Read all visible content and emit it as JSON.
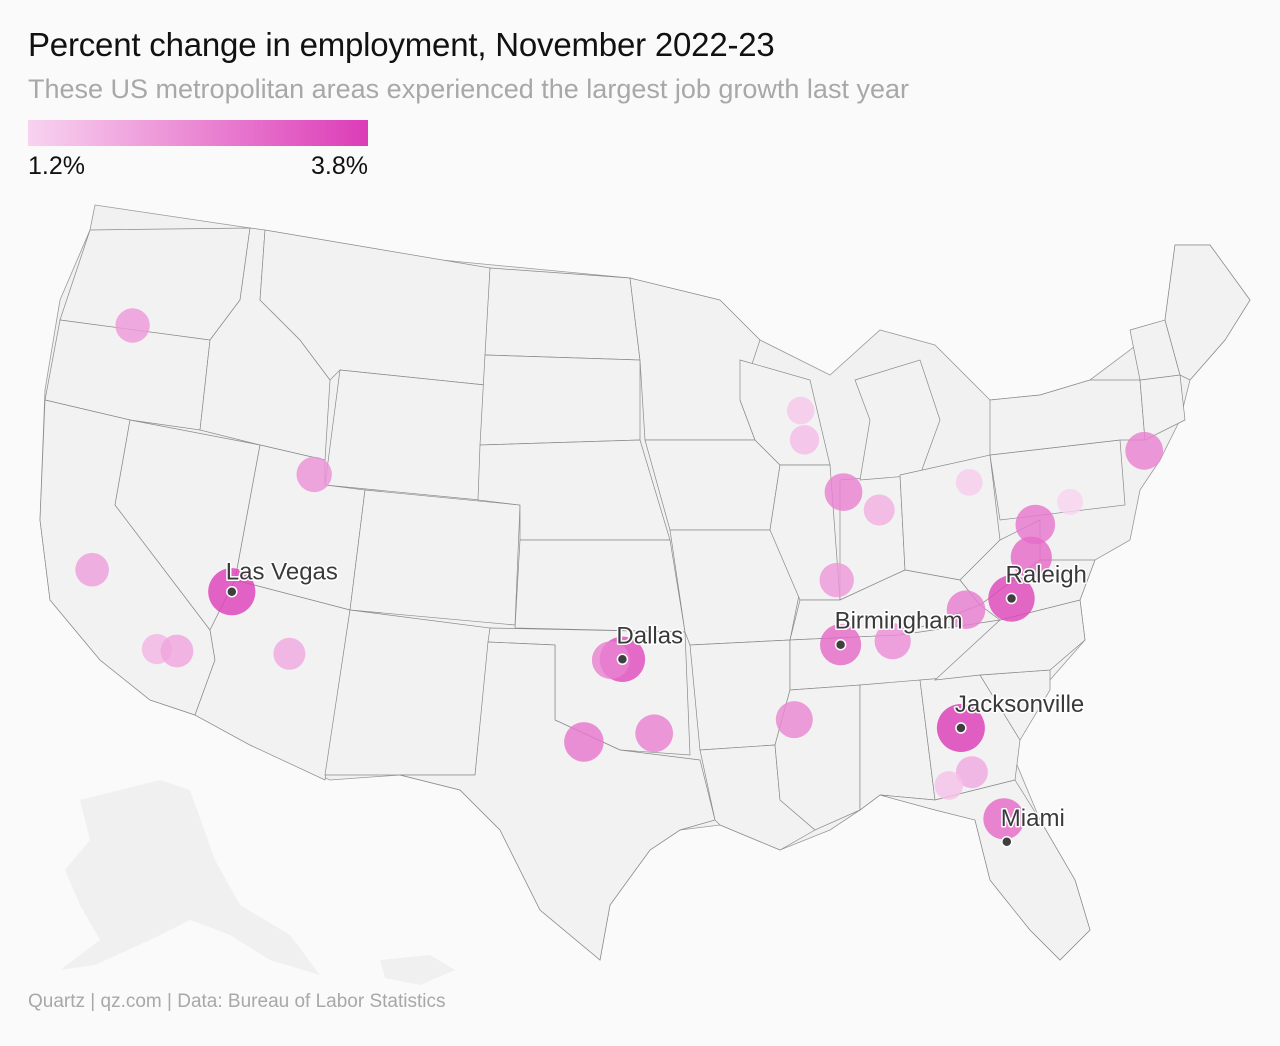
{
  "header": {
    "title": "Percent change in employment, November 2022-23",
    "subtitle": "These US metropolitan areas experienced the largest job growth last year"
  },
  "legend": {
    "min_label": "1.2%",
    "max_label": "3.8%",
    "min_value": 1.2,
    "max_value": 3.8,
    "color_low": "#f8d3ef",
    "color_high": "#dc3cb7"
  },
  "footer": {
    "source": "Quartz | qz.com | Data: Bureau of Labor Statistics"
  },
  "chart_data": {
    "type": "scatter",
    "encoding": "bubble map: color and size by percent change in employment",
    "points": [
      {
        "label": "Las Vegas",
        "lon": -115.14,
        "lat": 36.17,
        "value": 3.7
      },
      {
        "label": "Dallas",
        "lon": -96.8,
        "lat": 32.78,
        "value": 3.5
      },
      {
        "label": "",
        "lon": -97.33,
        "lat": 32.75,
        "value": 2.6
      },
      {
        "label": "Raleigh",
        "lon": -78.64,
        "lat": 35.78,
        "value": 3.6
      },
      {
        "label": "Birmingham",
        "lon": -86.8,
        "lat": 33.52,
        "value": 3.0
      },
      {
        "label": "Jacksonville",
        "lon": -81.66,
        "lat": 30.33,
        "value": 3.8
      },
      {
        "label": "Miami",
        "lon": -80.19,
        "lat": 25.76,
        "value": 0,
        "no_bubble": true
      },
      {
        "label": "",
        "lon": -80.2,
        "lat": 26.7,
        "value": 3.0
      },
      {
        "label": "",
        "lon": -122.33,
        "lat": 47.6,
        "value": 2.2
      },
      {
        "label": "",
        "lon": -111.89,
        "lat": 40.76,
        "value": 2.3
      },
      {
        "label": "",
        "lon": -122.0,
        "lat": 37.6,
        "value": 2.1
      },
      {
        "label": "",
        "lon": -118.25,
        "lat": 34.05,
        "value": 1.7
      },
      {
        "label": "",
        "lon": -117.3,
        "lat": 33.9,
        "value": 2.0
      },
      {
        "label": "",
        "lon": -112.07,
        "lat": 33.45,
        "value": 1.9
      },
      {
        "label": "",
        "lon": -98.49,
        "lat": 29.42,
        "value": 2.8
      },
      {
        "label": "",
        "lon": -95.37,
        "lat": 29.76,
        "value": 2.6
      },
      {
        "label": "",
        "lon": -89.1,
        "lat": 30.4,
        "value": 2.5
      },
      {
        "label": "",
        "lon": -88.0,
        "lat": 43.04,
        "value": 1.4
      },
      {
        "label": "",
        "lon": -87.9,
        "lat": 41.85,
        "value": 1.6
      },
      {
        "label": "",
        "lon": -86.16,
        "lat": 39.77,
        "value": 2.6
      },
      {
        "label": "",
        "lon": -84.5,
        "lat": 39.1,
        "value": 1.8
      },
      {
        "label": "",
        "lon": -86.78,
        "lat": 36.16,
        "value": 2.2
      },
      {
        "label": "",
        "lon": -84.39,
        "lat": 33.75,
        "value": 2.4
      },
      {
        "label": "",
        "lon": -80.84,
        "lat": 35.2,
        "value": 2.7
      },
      {
        "label": "",
        "lon": -79.99,
        "lat": 40.44,
        "value": 1.3
      },
      {
        "label": "",
        "lon": -77.03,
        "lat": 38.9,
        "value": 2.8
      },
      {
        "label": "",
        "lon": -77.44,
        "lat": 37.54,
        "value": 3.0
      },
      {
        "label": "",
        "lon": -75.17,
        "lat": 39.95,
        "value": 1.2
      },
      {
        "label": "",
        "lon": -71.06,
        "lat": 42.36,
        "value": 2.6
      },
      {
        "label": "",
        "lon": -81.38,
        "lat": 28.54,
        "value": 1.9
      },
      {
        "label": "",
        "lon": -82.46,
        "lat": 27.95,
        "value": 1.5
      }
    ]
  }
}
